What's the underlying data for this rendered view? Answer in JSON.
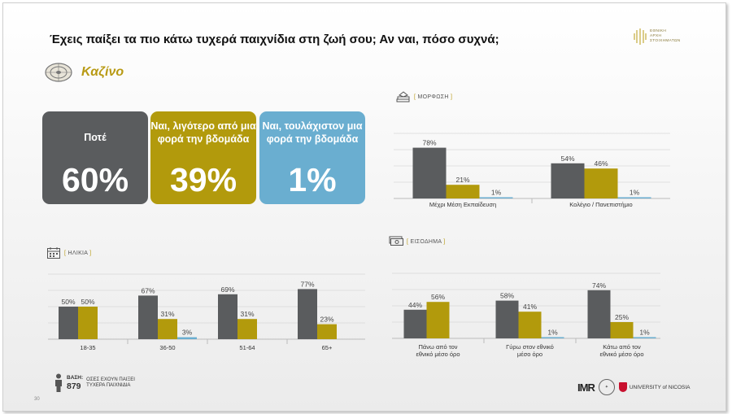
{
  "title": "Έχεις παίξει τα πιο κάτω τυχερά παιχνίδια στη ζωή σου; Αν ναι, πόσο συχνά;",
  "org_logo_lines": [
    "ΕΘΝΙΚΗ",
    "ΑΡΧΗ",
    "ΣΤΟΙΧΗΜΑΤΩΝ"
  ],
  "section": "Καζίνο",
  "colors": {
    "dark": "#5a5c5e",
    "gold": "#b29a0c",
    "blue": "#6aaed0"
  },
  "cards": [
    {
      "label": "Ποτέ",
      "value": "60%",
      "color": "#5a5c5e"
    },
    {
      "label": "Ναι, λιγότερο από μια φορά την βδομάδα",
      "value": "39%",
      "color": "#b29a0c"
    },
    {
      "label": "Ναι, τουλάχιστον μια φορά την βδομάδα",
      "value": "1%",
      "color": "#6aaed0"
    }
  ],
  "chart_labels": {
    "education": "ΜΟΡΦΩΣΗ",
    "age": "ΗΛΙΚΙΑ",
    "income": "ΕΙΣΟΔΗΜΑ"
  },
  "chart_data": [
    {
      "type": "bar",
      "id": "education",
      "title": "ΜΟΡΦΩΣΗ",
      "categories": [
        "Μέχρι Μέση Εκπαίδευση",
        "Κολέγιο / Πανεπιστήμιο"
      ],
      "series": [
        {
          "values": [
            78,
            54
          ]
        },
        {
          "values": [
            21,
            46
          ]
        },
        {
          "values": [
            1,
            1
          ]
        }
      ],
      "ylim": [
        0,
        100
      ]
    },
    {
      "type": "bar",
      "id": "age",
      "title": "ΗΛΙΚΙΑ",
      "categories": [
        "18-35",
        "36-50",
        "51-64",
        "65+"
      ],
      "series": [
        {
          "values": [
            50,
            67,
            69,
            77
          ]
        },
        {
          "values": [
            50,
            31,
            31,
            23
          ]
        },
        {
          "values": [
            0,
            3,
            0,
            0
          ]
        }
      ],
      "data_labels_shown": [
        [
          true,
          true,
          true,
          true
        ],
        [
          true,
          true,
          true,
          true
        ],
        [
          false,
          true,
          false,
          false
        ]
      ],
      "ylim": [
        0,
        100
      ]
    },
    {
      "type": "bar",
      "id": "income",
      "title": "ΕΙΣΟΔΗΜΑ",
      "categories": [
        "Πάνω από τον εθνικό μέσο όρο",
        "Γύρω στον εθνικό μέσο όρο",
        "Κάτω από τον εθνικό μέσο όρο"
      ],
      "series": [
        {
          "values": [
            44,
            58,
            74
          ]
        },
        {
          "values": [
            56,
            41,
            25
          ]
        },
        {
          "values": [
            0,
            1,
            1
          ]
        }
      ],
      "data_labels_shown": [
        [
          true,
          true,
          true
        ],
        [
          true,
          true,
          true
        ],
        [
          false,
          true,
          true
        ]
      ],
      "ylim": [
        0,
        100
      ]
    }
  ],
  "base": {
    "label": "ΒΑΣΗ:",
    "n": "879",
    "desc1": "ΟΣΕΣ ΕΧΟΥΝ ΠΑΙΞΕΙ",
    "desc2": "ΤΥΧΕΡΑ ΠΑΙΧΝΙΔΙΑ"
  },
  "page_number": "30",
  "footer": {
    "mmr": "IMR",
    "university": "UNIVERSITY of NICOSIA"
  }
}
